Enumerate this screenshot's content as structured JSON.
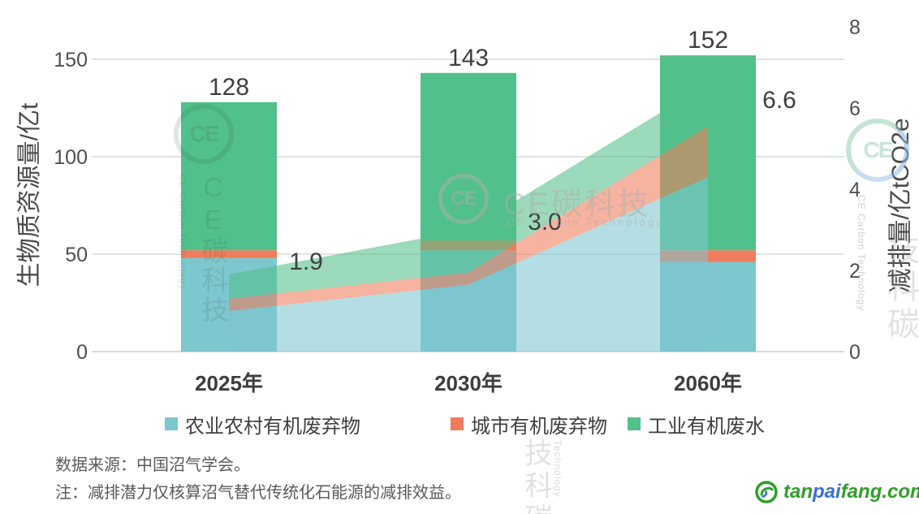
{
  "chart_data": {
    "type": "combo: stacked bar (left axis) + stacked area (right axis)",
    "categories": [
      "2025年",
      "2030年",
      "2060年"
    ],
    "bar_series": [
      {
        "name": "农业农村有机废弃物",
        "color": "#7dc7cf",
        "values": [
          48,
          52,
          46
        ]
      },
      {
        "name": "城市有机废弃物",
        "color": "#ef7c5c",
        "values": [
          4,
          5,
          6
        ]
      },
      {
        "name": "工业有机废水",
        "color": "#52c08a",
        "values": [
          76,
          86,
          100
        ]
      }
    ],
    "bar_total_labels": [
      "128",
      "143",
      "152"
    ],
    "area_series": [
      {
        "name": "农业农村有机废弃物",
        "color": "#7dc7cf",
        "values": [
          1.0,
          1.65,
          4.3
        ]
      },
      {
        "name": "城市有机废弃物",
        "color": "#ef7c5c",
        "values": [
          0.3,
          0.3,
          1.25
        ]
      },
      {
        "name": "工业有机废水",
        "color": "#52c08a",
        "values": [
          0.6,
          1.05,
          1.05
        ]
      }
    ],
    "area_total_labels": [
      "1.9",
      "3.0",
      "6.6"
    ],
    "left_axis": {
      "label": "生物质资源量/亿t",
      "ticks": [
        0,
        50,
        100,
        150
      ],
      "units_per_px": "50 per 120px"
    },
    "right_axis": {
      "label": "减排量/亿tCO2e",
      "ticks": [
        0,
        2,
        4,
        6,
        8
      ]
    },
    "grid": "horizontal lines at left-axis ticks",
    "legend_position": "bottom"
  },
  "legend": [
    {
      "label": "农业农村有机废弃物",
      "color": "#7dc7cf"
    },
    {
      "label": "城市有机废弃物",
      "color": "#ef7c5c"
    },
    {
      "label": "工业有机废水",
      "color": "#52c08a"
    }
  ],
  "footer": {
    "line1": "数据来源：中国沼气学会。",
    "line2": "注：减排潜力仅核算沼气替代传统化石能源的减排效益。"
  },
  "watermark": {
    "monogram": "CE",
    "brand": "CE碳科技",
    "brand_en": "CE Carbon Technology",
    "partial_vertical": "技科碳",
    "partial_en": "Technology"
  },
  "site_logo": {
    "part_green1": "tan",
    "part_blue": "pai",
    "part_green2": "fang.com",
    "green": "#2f9e27",
    "blue": "#3a6fd8"
  },
  "colors": {
    "gridline": "#dadada",
    "tick_text": "#4f4f4f",
    "value_text": "#3f3f3f",
    "xlabel_text": "#3d3d3d"
  }
}
